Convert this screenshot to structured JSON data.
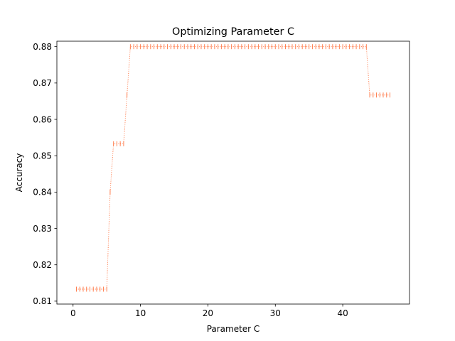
{
  "chart_data": {
    "type": "line",
    "title": "Optimizing Parameter C",
    "xlabel": "Parameter C",
    "ylabel": "Accuracy",
    "xlim": [
      -2.4,
      49.9
    ],
    "ylim": [
      0.8092,
      0.8815
    ],
    "xticks": [
      0,
      10,
      20,
      30,
      40
    ],
    "yticks": [
      0.81,
      0.82,
      0.83,
      0.84,
      0.85,
      0.86,
      0.87,
      0.88
    ],
    "grid": false,
    "legend": "none",
    "series": [
      {
        "color": "#ff7f50",
        "linestyle": "dotted",
        "marker": "|",
        "x": [
          0.5,
          1,
          1.5,
          2,
          2.5,
          3,
          3.5,
          4,
          4.5,
          5,
          5.5,
          6,
          6.5,
          7,
          7.5,
          8,
          8.5,
          9,
          9.5,
          10,
          10.5,
          11,
          11.5,
          12,
          12.5,
          13,
          13.5,
          14,
          14.5,
          15,
          15.5,
          16,
          16.5,
          17,
          17.5,
          18,
          18.5,
          19,
          19.5,
          20,
          20.5,
          21,
          21.5,
          22,
          22.5,
          23,
          23.5,
          24,
          24.5,
          25,
          25.5,
          26,
          26.5,
          27,
          27.5,
          28,
          28.5,
          29,
          29.5,
          30,
          30.5,
          31,
          31.5,
          32,
          32.5,
          33,
          33.5,
          34,
          34.5,
          35,
          35.5,
          36,
          36.5,
          37,
          37.5,
          38,
          38.5,
          39,
          39.5,
          40,
          40.5,
          41,
          41.5,
          42,
          42.5,
          43,
          43.5,
          44,
          44.5,
          45,
          45.5,
          46,
          46.5,
          47
        ],
        "y": [
          0.8133,
          0.8133,
          0.8133,
          0.8133,
          0.8133,
          0.8133,
          0.8133,
          0.8133,
          0.8133,
          0.8133,
          0.84,
          0.8533,
          0.8533,
          0.8533,
          0.8533,
          0.8667,
          0.88,
          0.88,
          0.88,
          0.88,
          0.88,
          0.88,
          0.88,
          0.88,
          0.88,
          0.88,
          0.88,
          0.88,
          0.88,
          0.88,
          0.88,
          0.88,
          0.88,
          0.88,
          0.88,
          0.88,
          0.88,
          0.88,
          0.88,
          0.88,
          0.88,
          0.88,
          0.88,
          0.88,
          0.88,
          0.88,
          0.88,
          0.88,
          0.88,
          0.88,
          0.88,
          0.88,
          0.88,
          0.88,
          0.88,
          0.88,
          0.88,
          0.88,
          0.88,
          0.88,
          0.88,
          0.88,
          0.88,
          0.88,
          0.88,
          0.88,
          0.88,
          0.88,
          0.88,
          0.88,
          0.88,
          0.88,
          0.88,
          0.88,
          0.88,
          0.88,
          0.88,
          0.88,
          0.88,
          0.88,
          0.88,
          0.88,
          0.88,
          0.88,
          0.88,
          0.88,
          0.88,
          0.8667,
          0.8667,
          0.8667,
          0.8667,
          0.8667,
          0.8667,
          0.8667
        ]
      }
    ]
  }
}
